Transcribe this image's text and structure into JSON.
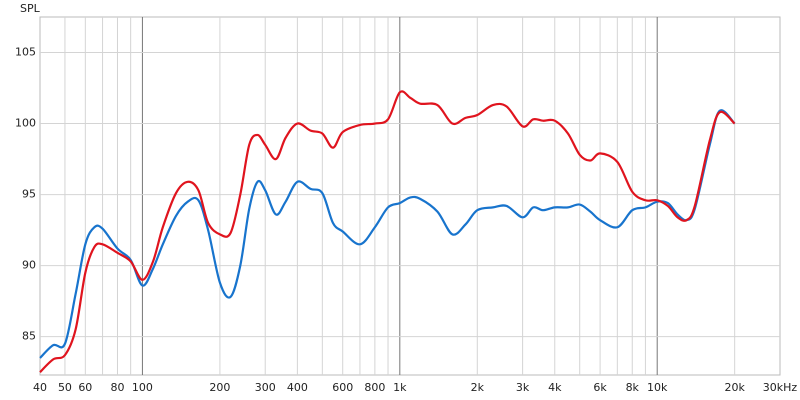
{
  "chart_data": {
    "type": "line",
    "y_label": "SPL",
    "x_scale": "log",
    "grid": true,
    "x": [
      40,
      45,
      50,
      55,
      60,
      65,
      70,
      80,
      90,
      100,
      110,
      120,
      135,
      150,
      165,
      180,
      200,
      220,
      240,
      260,
      280,
      300,
      330,
      360,
      400,
      450,
      500,
      550,
      600,
      700,
      800,
      900,
      1000,
      1100,
      1200,
      1400,
      1600,
      1800,
      2000,
      2300,
      2600,
      3000,
      3300,
      3600,
      4000,
      4500,
      5000,
      5500,
      6000,
      7000,
      8000,
      9000,
      10000,
      11000,
      12000,
      13000,
      14000,
      16000,
      17500,
      20000
    ],
    "series": [
      {
        "color": "#1874cd",
        "values": [
          83.5,
          84.4,
          84.5,
          88,
          91.5,
          92.7,
          92.6,
          91.2,
          90.4,
          88.6,
          89.8,
          91.5,
          93.5,
          94.5,
          94.6,
          92.5,
          88.8,
          87.8,
          90,
          94,
          95.9,
          95.3,
          93.6,
          94.5,
          95.9,
          95.4,
          95.1,
          93,
          92.4,
          91.5,
          92.7,
          94.1,
          94.4,
          94.8,
          94.7,
          93.8,
          92.2,
          92.9,
          93.9,
          94.1,
          94.2,
          93.4,
          94.1,
          93.9,
          94.1,
          94.1,
          94.3,
          93.8,
          93.2,
          92.7,
          93.9,
          94.1,
          94.5,
          94.4,
          93.6,
          93.2,
          94,
          98.5,
          100.9,
          100
        ]
      },
      {
        "color": "#e0141e",
        "values": [
          82.5,
          83.4,
          83.7,
          85.5,
          89.5,
          91.3,
          91.5,
          90.9,
          90.3,
          89,
          90.3,
          92.7,
          95.1,
          95.9,
          95.3,
          93,
          92.2,
          92.3,
          95,
          98.5,
          99.2,
          98.5,
          97.5,
          99,
          100,
          99.5,
          99.3,
          98.3,
          99.4,
          99.9,
          100,
          100.3,
          102.2,
          101.8,
          101.4,
          101.3,
          100,
          100.4,
          100.6,
          101.3,
          101.2,
          99.8,
          100.3,
          100.2,
          100.2,
          99.3,
          97.8,
          97.4,
          97.9,
          97.3,
          95.2,
          94.6,
          94.6,
          94.2,
          93.4,
          93.2,
          94.2,
          98.8,
          100.8,
          100
        ]
      }
    ],
    "xlim": [
      40,
      30000
    ],
    "xticks": [
      40,
      50,
      60,
      80,
      100,
      200,
      300,
      400,
      600,
      800,
      {
        "value": 1000,
        "label": "1k"
      },
      {
        "value": 2000,
        "label": "2k"
      },
      {
        "value": 3000,
        "label": "3k"
      },
      {
        "value": 4000,
        "label": "4k"
      },
      {
        "value": 6000,
        "label": "6k"
      },
      {
        "value": 8000,
        "label": "8k"
      },
      {
        "value": 10000,
        "label": "10k"
      },
      {
        "value": 20000,
        "label": "20k"
      },
      {
        "value": 30000,
        "label": "30kHz"
      }
    ],
    "x_minor_grid": [
      70,
      90,
      500,
      700,
      900,
      5000,
      7000,
      9000
    ],
    "ylim": [
      82.3,
      107.5
    ],
    "yticks": [
      85,
      90,
      95,
      100,
      105
    ]
  }
}
